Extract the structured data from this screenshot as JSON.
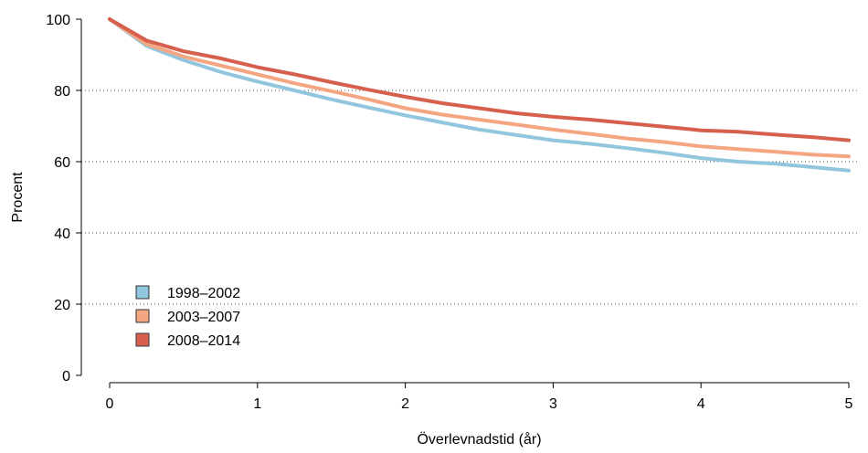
{
  "chart_data": {
    "type": "line",
    "title": "",
    "xlabel": "Överlevnadstid (år)",
    "ylabel": "Procent",
    "xlim": [
      0,
      5
    ],
    "ylim": [
      0,
      100
    ],
    "x_ticks": [
      "0",
      "1",
      "2",
      "3",
      "4",
      "5"
    ],
    "y_ticks": [
      "0",
      "20",
      "40",
      "60",
      "80",
      "100"
    ],
    "grid": "horizontal dotted at 20, 40, 60, 80",
    "legend_position": "bottom-left",
    "series": [
      {
        "name": "1998–2002",
        "color": "#92c5de",
        "points": [
          [
            0,
            100
          ],
          [
            0.25,
            92.5
          ],
          [
            0.5,
            88.5
          ],
          [
            0.75,
            85.2
          ],
          [
            1,
            82.5
          ],
          [
            1.25,
            80
          ],
          [
            1.5,
            77.5
          ],
          [
            1.75,
            75.2
          ],
          [
            2,
            73
          ],
          [
            2.25,
            71
          ],
          [
            2.5,
            69
          ],
          [
            2.75,
            67.5
          ],
          [
            3,
            66
          ],
          [
            3.25,
            65
          ],
          [
            3.5,
            63.8
          ],
          [
            3.75,
            62.5
          ],
          [
            4,
            61
          ],
          [
            4.25,
            60
          ],
          [
            4.5,
            59.4
          ],
          [
            4.75,
            58.5
          ],
          [
            5,
            57.5
          ]
        ]
      },
      {
        "name": "2003–2007",
        "color": "#f4a582",
        "points": [
          [
            0,
            100
          ],
          [
            0.25,
            93
          ],
          [
            0.5,
            89.5
          ],
          [
            0.75,
            87
          ],
          [
            1,
            84.5
          ],
          [
            1.25,
            82
          ],
          [
            1.5,
            79.8
          ],
          [
            1.75,
            77.5
          ],
          [
            2,
            75
          ],
          [
            2.25,
            73.2
          ],
          [
            2.5,
            71.8
          ],
          [
            2.75,
            70.4
          ],
          [
            3,
            69
          ],
          [
            3.25,
            67.8
          ],
          [
            3.5,
            66.5
          ],
          [
            3.75,
            65.5
          ],
          [
            4,
            64.3
          ],
          [
            4.25,
            63.5
          ],
          [
            4.5,
            62.8
          ],
          [
            4.75,
            62
          ],
          [
            5,
            61.5
          ]
        ]
      },
      {
        "name": "2008–2014",
        "color": "#d6604d",
        "points": [
          [
            0,
            100
          ],
          [
            0.25,
            94
          ],
          [
            0.5,
            91
          ],
          [
            0.75,
            89
          ],
          [
            1,
            86.5
          ],
          [
            1.25,
            84.5
          ],
          [
            1.5,
            82.3
          ],
          [
            1.75,
            80.2
          ],
          [
            2,
            78.2
          ],
          [
            2.25,
            76.4
          ],
          [
            2.5,
            75
          ],
          [
            2.75,
            73.6
          ],
          [
            3,
            72.6
          ],
          [
            3.25,
            71.8
          ],
          [
            3.5,
            70.8
          ],
          [
            3.75,
            69.8
          ],
          [
            4,
            68.8
          ],
          [
            4.25,
            68.4
          ],
          [
            4.5,
            67.6
          ],
          [
            4.75,
            66.9
          ],
          [
            5,
            66
          ]
        ]
      }
    ]
  }
}
